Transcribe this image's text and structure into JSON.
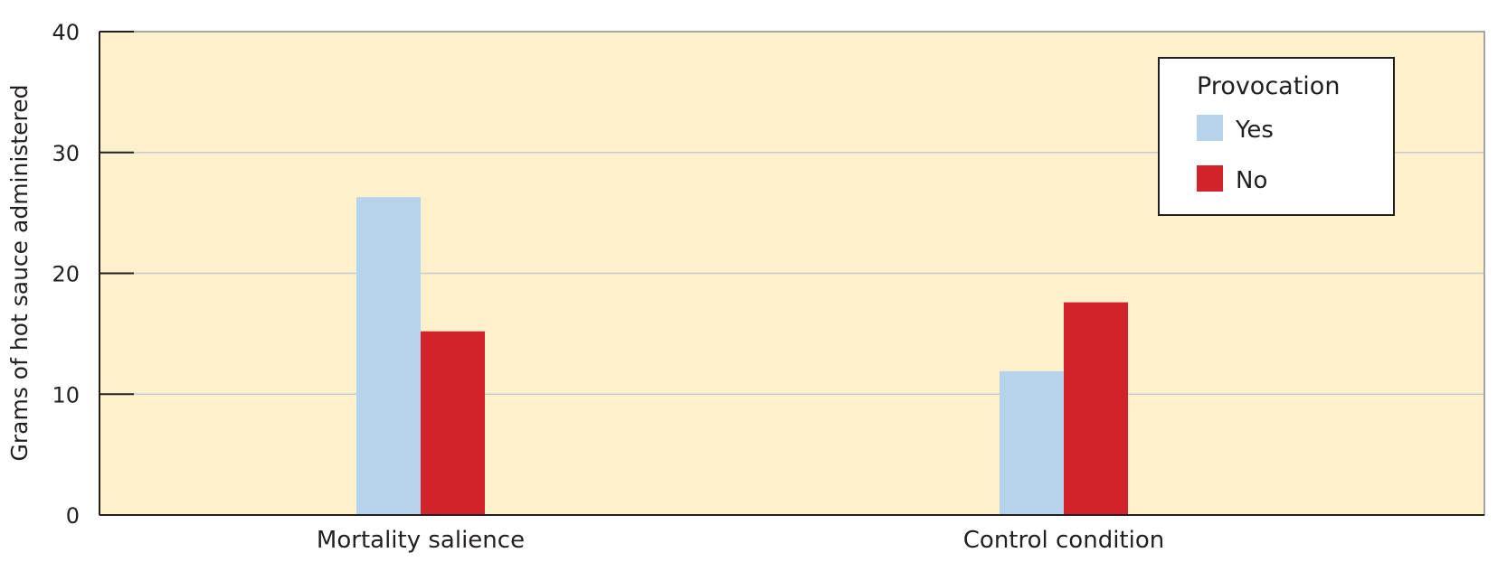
{
  "chart_data": {
    "type": "bar",
    "ylabel": "Grams of hot sauce administered",
    "xlabel": "",
    "ylim": [
      0,
      40
    ],
    "yticks": [
      0,
      10,
      20,
      30,
      40
    ],
    "grid": true,
    "categories": [
      "Mortality salience",
      "Control condition"
    ],
    "legend": {
      "title": "Provocation",
      "position": "top-right"
    },
    "series": [
      {
        "name": "Yes",
        "color": "#b5d3ea",
        "values": [
          26.3,
          11.9
        ]
      },
      {
        "name": "No",
        "color": "#d2232a",
        "values": [
          15.2,
          17.6
        ]
      }
    ],
    "colors": {
      "plot_background": "#fdf0cd",
      "grid": "#c9c9c9",
      "axis": "#231f20"
    }
  }
}
